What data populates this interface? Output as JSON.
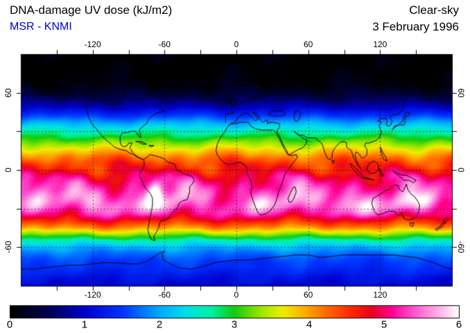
{
  "header": {
    "title": "DNA-damage UV dose (kJ/m2)",
    "source": "MSR - KNMI",
    "source_color": "#0000cc",
    "condition": "Clear-sky",
    "date": "3 February 1996"
  },
  "axes": {
    "lon_label_values": [
      -120,
      -60,
      0,
      60,
      120
    ],
    "lat_label_values": [
      60,
      0,
      -60
    ],
    "lon_grid_values": [
      -120,
      -60,
      0,
      60,
      120
    ],
    "lat_grid_values": [
      60,
      30,
      0,
      -30,
      -60
    ],
    "tick_step_deg": 30,
    "lon_range": [
      -180,
      180
    ],
    "lat_range": [
      -90,
      90
    ]
  },
  "colorbar": {
    "min": 0,
    "max": 6,
    "tick_labels": [
      "0",
      "1",
      "2",
      "3",
      "4",
      "5",
      "6"
    ]
  },
  "chart_data": {
    "type": "heatmap",
    "title": "DNA-damage UV dose (kJ/m2)",
    "subtitle": "Clear-sky, 3 February 1996",
    "source": "MSR - KNMI",
    "units": "kJ/m2",
    "lon_range": [
      -180,
      180
    ],
    "lat_range": [
      -90,
      90
    ],
    "colorbar_range": [
      0,
      6
    ],
    "colormap_stops": [
      [
        0.0,
        "#000000"
      ],
      [
        0.5,
        "#000050"
      ],
      [
        1.0,
        "#0000cc"
      ],
      [
        1.5,
        "#0033ff"
      ],
      [
        2.0,
        "#00aaff"
      ],
      [
        2.35,
        "#00e0e8"
      ],
      [
        2.7,
        "#00f0a0"
      ],
      [
        3.0,
        "#10cc10"
      ],
      [
        3.35,
        "#99e600"
      ],
      [
        3.65,
        "#eeee00"
      ],
      [
        3.95,
        "#ffaa00"
      ],
      [
        4.25,
        "#ff6600"
      ],
      [
        4.55,
        "#ff2a00"
      ],
      [
        4.85,
        "#e80020"
      ],
      [
        5.1,
        "#ff0090"
      ],
      [
        5.35,
        "#ff44cc"
      ],
      [
        5.6,
        "#ff8ddd"
      ],
      [
        5.8,
        "#ffc2ec"
      ],
      [
        6.0,
        "#ffffff"
      ]
    ],
    "lat_profile": [
      [
        90,
        0.0
      ],
      [
        78,
        0.0
      ],
      [
        70,
        0.05
      ],
      [
        65,
        0.12
      ],
      [
        60,
        0.3
      ],
      [
        55,
        0.55
      ],
      [
        50,
        0.85
      ],
      [
        45,
        1.25
      ],
      [
        40,
        1.7
      ],
      [
        35,
        2.15
      ],
      [
        30,
        2.6
      ],
      [
        25,
        3.0
      ],
      [
        20,
        3.4
      ],
      [
        15,
        3.8
      ],
      [
        10,
        4.2
      ],
      [
        5,
        4.5
      ],
      [
        0,
        4.7
      ],
      [
        -5,
        4.95
      ],
      [
        -10,
        5.15
      ],
      [
        -15,
        5.3
      ],
      [
        -20,
        5.42
      ],
      [
        -25,
        5.45
      ],
      [
        -30,
        5.38
      ],
      [
        -35,
        5.1
      ],
      [
        -40,
        4.6
      ],
      [
        -45,
        4.05
      ],
      [
        -50,
        3.3
      ],
      [
        -55,
        2.6
      ],
      [
        -60,
        2.05
      ],
      [
        -65,
        1.75
      ],
      [
        -70,
        1.55
      ],
      [
        -75,
        1.45
      ],
      [
        -80,
        1.3
      ],
      [
        -85,
        1.15
      ],
      [
        -90,
        1.05
      ]
    ],
    "hotspots": [
      [
        -68,
        -18,
        0.85,
        6,
        10
      ],
      [
        -62,
        -28,
        0.3,
        10,
        8
      ],
      [
        95,
        -27,
        0.45,
        20,
        8
      ],
      [
        -115,
        -25,
        0.35,
        18,
        8
      ],
      [
        152,
        -25,
        0.3,
        14,
        7
      ],
      [
        25,
        -25,
        0.2,
        14,
        8
      ]
    ],
    "coastlines": [
      [
        -168,
        66,
        -165,
        62,
        -160,
        59,
        -153,
        58,
        -146,
        60,
        -140,
        60,
        -136,
        58,
        -132,
        55,
        -128,
        51,
        -125,
        48,
        -124,
        43,
        -121,
        36,
        -117,
        32,
        -112,
        26,
        -107,
        22,
        -102,
        18,
        -97,
        16,
        -92,
        15,
        -89,
        13,
        -86,
        12,
        -83,
        10,
        -80,
        9,
        -78,
        8,
        -80,
        9,
        -82,
        10,
        -85,
        12,
        -87,
        14,
        -88,
        16,
        -89,
        17,
        -88,
        19,
        -87,
        21,
        -90,
        21,
        -91,
        19,
        -94,
        18,
        -96,
        19,
        -97,
        22,
        -97,
        26,
        -95,
        29,
        -91,
        29,
        -88,
        30,
        -84,
        30,
        -82,
        27,
        -80,
        25,
        -80,
        27,
        -81,
        31,
        -78,
        34,
        -75,
        36,
        -73,
        40,
        -70,
        42,
        -67,
        44,
        -63,
        45,
        -60,
        46,
        -64,
        48,
        -67,
        50,
        -64,
        52,
        -60,
        54,
        -64,
        56,
        -70,
        58,
        -76,
        58,
        -79,
        55,
        -82,
        55,
        -86,
        56,
        -90,
        57,
        -94,
        58,
        -94,
        61,
        -90,
        63,
        -86,
        65,
        -89,
        67,
        -94,
        69,
        -100,
        68,
        -106,
        68,
        -113,
        69,
        -120,
        69,
        -127,
        70,
        -134,
        69,
        -140,
        69,
        -146,
        70,
        -152,
        71,
        -158,
        71,
        -163,
        70,
        -166,
        68,
        -168,
        66
      ],
      [
        -78,
        8,
        -76,
        9,
        -72,
        12,
        -68,
        11,
        -64,
        10,
        -61,
        9,
        -57,
        6,
        -53,
        5,
        -51,
        4,
        -50,
        0,
        -47,
        -1,
        -44,
        -3,
        -40,
        -4,
        -37,
        -5,
        -35,
        -8,
        -37,
        -11,
        -39,
        -13,
        -39,
        -17,
        -40,
        -20,
        -41,
        -23,
        -45,
        -24,
        -48,
        -26,
        -49,
        -29,
        -52,
        -32,
        -55,
        -35,
        -57,
        -38,
        -62,
        -39,
        -64,
        -41,
        -65,
        -45,
        -66,
        -47,
        -68,
        -50,
        -69,
        -52,
        -68,
        -55,
        -71,
        -54,
        -73,
        -50,
        -74,
        -46,
        -73,
        -42,
        -72,
        -37,
        -71,
        -32,
        -70,
        -27,
        -70,
        -22,
        -72,
        -18,
        -76,
        -14,
        -78,
        -10,
        -80,
        -6,
        -81,
        -4,
        -80,
        -1,
        -78,
        1,
        -77,
        4,
        -77,
        7,
        -78,
        8
      ],
      [
        -53,
        60,
        -48,
        61,
        -44,
        60,
        -42,
        62,
        -40,
        65,
        -36,
        66,
        -32,
        68,
        -26,
        70,
        -21,
        70,
        -20,
        73,
        -24,
        75,
        -30,
        76,
        -36,
        78,
        -44,
        80,
        -52,
        80,
        -58,
        77,
        -61,
        75,
        -57,
        72,
        -55,
        69,
        -54,
        66,
        -53,
        60
      ],
      [
        -6,
        35,
        -2,
        36,
        3,
        37,
        10,
        37,
        12,
        34,
        16,
        32,
        21,
        31,
        26,
        31,
        31,
        31,
        32,
        30,
        34,
        28,
        36,
        24,
        38,
        20,
        40,
        16,
        43,
        12,
        46,
        11,
        50,
        12,
        51,
        10,
        47,
        5,
        43,
        0,
        40,
        -4,
        39,
        -8,
        37,
        -13,
        35,
        -18,
        34,
        -22,
        32,
        -27,
        29,
        -31,
        25,
        -34,
        20,
        -35,
        18,
        -33,
        16,
        -29,
        14,
        -24,
        12,
        -18,
        13,
        -13,
        12,
        -8,
        9,
        -3,
        9,
        1,
        7,
        4,
        3,
        6,
        -2,
        5,
        -6,
        4,
        -9,
        5,
        -13,
        8,
        -16,
        12,
        -17,
        15,
        -16,
        20,
        -14,
        24,
        -11,
        28,
        -9,
        31,
        -6,
        35
      ],
      [
        44,
        -25,
        46,
        -25,
        48,
        -22,
        50,
        -17,
        49,
        -13,
        47,
        -14,
        45,
        -18,
        43,
        -22,
        44,
        -25
      ],
      [
        -9,
        37,
        -9,
        43,
        -5,
        44,
        -2,
        44,
        -4,
        46,
        -5,
        48,
        -2,
        49,
        1,
        50,
        4,
        52,
        8,
        54,
        8,
        56,
        12,
        55,
        17,
        55,
        20,
        56,
        24,
        58,
        28,
        60,
        30,
        60
      ],
      [
        13,
        56,
        18,
        58,
        21,
        61,
        22,
        64,
        26,
        66,
        30,
        69,
        31,
        70,
        27,
        71,
        22,
        70,
        17,
        68,
        13,
        66,
        9,
        64,
        5,
        62,
        5,
        59,
        8,
        58,
        13,
        56
      ],
      [
        31,
        70,
        36,
        67,
        40,
        67,
        45,
        68,
        50,
        69,
        56,
        69,
        62,
        70,
        68,
        72,
        74,
        73,
        80,
        73,
        86,
        75,
        93,
        76,
        100,
        77,
        106,
        77,
        112,
        76,
        116,
        74,
        121,
        73,
        127,
        71,
        133,
        71,
        139,
        72,
        146,
        71,
        152,
        70,
        158,
        70,
        164,
        69,
        170,
        67,
        176,
        66,
        180,
        66
      ],
      [
        -5,
        36,
        -2,
        37,
        0,
        39,
        3,
        42,
        7,
        44,
        9,
        44,
        12,
        42,
        14,
        40,
        16,
        38,
        18,
        40,
        16,
        42,
        14,
        45,
        19,
        42,
        19,
        40,
        21,
        38,
        22,
        37,
        24,
        38,
        26,
        39,
        26,
        36,
        28,
        37,
        31,
        37,
        36,
        36,
        36,
        33,
        34,
        31,
        34,
        29,
        35,
        28,
        37,
        24,
        39,
        20,
        42,
        15,
        43,
        12,
        45,
        12,
        48,
        14,
        52,
        16,
        55,
        17,
        58,
        20,
        59,
        23,
        57,
        24,
        54,
        26,
        51,
        28,
        48,
        30,
        52,
        27,
        56,
        27,
        59,
        25,
        62,
        25,
        66,
        25,
        68,
        23,
        71,
        21,
        72,
        19,
        73,
        16,
        74,
        13,
        76,
        9,
        78,
        8,
        80,
        10,
        80,
        13,
        82,
        17,
        86,
        21,
        88,
        22,
        90,
        22,
        92,
        21,
        92,
        18,
        94,
        16,
        96,
        15,
        97,
        12,
        98,
        9,
        100,
        6,
        103,
        2,
        104,
        1,
        102,
        3,
        101,
        6,
        100,
        8,
        99,
        12,
        100,
        14,
        102,
        13,
        104,
        10,
        105,
        9,
        107,
        10,
        109,
        12,
        109,
        16,
        107,
        19,
        108,
        21,
        111,
        21,
        114,
        22,
        117,
        23,
        120,
        26,
        121,
        30,
        120,
        32,
        119,
        34,
        121,
        37,
        118,
        38,
        120,
        40,
        122,
        40,
        125,
        40,
        126,
        38,
        125,
        35,
        127,
        34,
        129,
        35,
        130,
        38,
        128,
        41,
        131,
        43,
        135,
        43,
        138,
        46,
        140,
        49,
        138,
        51,
        141,
        53,
        140,
        54,
        143,
        56,
        147,
        59,
        151,
        59,
        155,
        60,
        157,
        58,
        159,
        54,
        161,
        53,
        163,
        56,
        162,
        58,
        160,
        61,
        164,
        62,
        169,
        63,
        173,
        64,
        178,
        65,
        180,
        65
      ],
      [
        28,
        45,
        32,
        46,
        37,
        46,
        40,
        45,
        41,
        43,
        38,
        42,
        34,
        42,
        30,
        42,
        27,
        43,
        28,
        45
      ],
      [
        49,
        46,
        52,
        46,
        54,
        44,
        53,
        41,
        51,
        38,
        49,
        38,
        48,
        41,
        49,
        44,
        49,
        46
      ],
      [
        -5,
        50,
        0,
        51,
        1,
        52,
        -1,
        53,
        -3,
        56,
        -4,
        58,
        -5,
        57,
        -5,
        54,
        -4,
        53,
        -5,
        50
      ],
      [
        -10,
        52,
        -6,
        52,
        -6,
        55,
        -10,
        54,
        -10,
        52
      ],
      [
        -22,
        64,
        -16,
        63,
        -14,
        65,
        -18,
        66,
        -22,
        65,
        -22,
        64
      ],
      [
        130,
        31,
        132,
        34,
        136,
        35,
        140,
        35,
        141,
        38,
        141,
        41,
        143,
        42,
        145,
        44,
        142,
        45,
        140,
        42,
        139,
        38,
        135,
        35,
        132,
        33,
        130,
        31
      ],
      [
        120,
        18,
        122,
        14,
        124,
        11,
        126,
        7,
        123,
        8,
        121,
        13,
        120,
        18
      ],
      [
        109,
        2,
        111,
        5,
        115,
        7,
        118,
        5,
        119,
        1,
        116,
        -2,
        112,
        -3,
        109,
        0,
        109,
        2
      ],
      [
        95,
        5,
        98,
        3,
        101,
        0,
        104,
        -3,
        106,
        -6,
        104,
        -6,
        101,
        -3,
        97,
        1,
        95,
        5
      ],
      [
        105,
        -6,
        110,
        -7,
        115,
        -8,
        112,
        -7,
        107,
        -6,
        105,
        -6
      ],
      [
        119,
        1,
        121,
        -2,
        123,
        -4,
        121,
        -5,
        120,
        -2,
        119,
        1
      ],
      [
        131,
        -1,
        134,
        -2,
        138,
        -4,
        142,
        -4,
        146,
        -6,
        150,
        -8,
        148,
        -10,
        144,
        -8,
        140,
        -8,
        135,
        -4,
        132,
        -2,
        131,
        -1
      ],
      [
        114,
        -22,
        113,
        -26,
        115,
        -32,
        118,
        -35,
        122,
        -34,
        127,
        -32,
        132,
        -32,
        134,
        -35,
        137,
        -35,
        138,
        -33,
        140,
        -38,
        144,
        -39,
        147,
        -38,
        150,
        -37,
        152,
        -33,
        153,
        -28,
        152,
        -25,
        149,
        -21,
        146,
        -19,
        143,
        -15,
        142,
        -11,
        139,
        -17,
        136,
        -15,
        135,
        -12,
        131,
        -12,
        128,
        -15,
        124,
        -16,
        120,
        -19,
        116,
        -21,
        114,
        -22
      ],
      [
        145,
        -41,
        148,
        -41,
        147,
        -44,
        145,
        -43,
        145,
        -41
      ],
      [
        166,
        -46,
        170,
        -44,
        172,
        -41,
        173,
        -42,
        172,
        -44,
        167,
        -47,
        166,
        -46
      ],
      [
        173,
        -39,
        175,
        -37,
        177,
        -38,
        175,
        -40,
        174,
        -42,
        173,
        -39
      ],
      [
        -180,
        -77,
        -170,
        -77,
        -160,
        -76,
        -150,
        -75,
        -140,
        -74,
        -130,
        -74,
        -120,
        -73,
        -110,
        -72,
        -100,
        -72,
        -90,
        -73,
        -82,
        -73,
        -75,
        -71,
        -68,
        -67,
        -63,
        -64,
        -60,
        -63,
        -62,
        -66,
        -61,
        -70,
        -55,
        -73,
        -48,
        -76,
        -38,
        -77,
        -28,
        -75,
        -18,
        -72,
        -10,
        -71,
        0,
        -70,
        10,
        -70,
        20,
        -69,
        30,
        -68,
        40,
        -67,
        50,
        -66,
        60,
        -66,
        70,
        -68,
        80,
        -67,
        90,
        -66,
        100,
        -66,
        110,
        -66,
        120,
        -66,
        130,
        -66,
        140,
        -67,
        150,
        -68,
        158,
        -70,
        165,
        -72,
        172,
        -75,
        180,
        -77
      ],
      [
        -84,
        22,
        -79,
        22,
        -75,
        20,
        -78,
        20,
        -82,
        22,
        -84,
        22
      ],
      [
        -73,
        19,
        -69,
        19,
        -71,
        18,
        -73,
        19
      ],
      [
        80,
        8,
        82,
        7,
        81,
        5,
        80,
        6,
        80,
        8
      ]
    ]
  }
}
